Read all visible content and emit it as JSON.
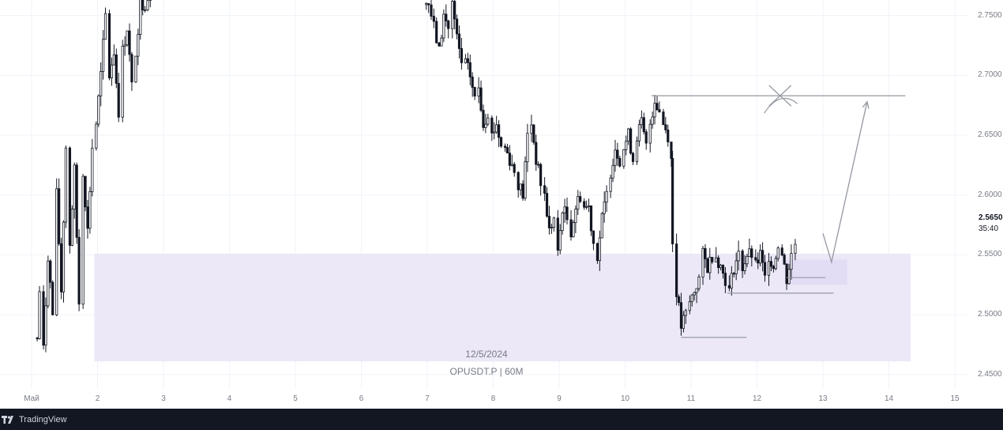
{
  "chart_data": {
    "type": "candlestick",
    "symbol": "OPUSDT.P",
    "interval": "60M",
    "watermark_date": "12/5/2024",
    "watermark_symbol": "OPUSDT.P | 60M",
    "y_axis_ticks": [
      "2.7500",
      "2.7000",
      "2.6500",
      "2.6000",
      "2.5500",
      "2.5000",
      "2.4500"
    ],
    "y_tick_values": [
      2.75,
      2.7,
      2.65,
      2.6,
      2.55,
      2.5,
      2.45
    ],
    "ylim": [
      2.438,
      2.763
    ],
    "x_axis_ticks": [
      "Май",
      "2",
      "3",
      "4",
      "5",
      "6",
      "7",
      "8",
      "9",
      "10",
      "11",
      "12",
      "13",
      "14",
      "15"
    ],
    "x_tick_days": [
      1,
      2,
      3,
      4,
      5,
      6,
      7,
      8,
      9,
      10,
      11,
      12,
      13,
      14,
      15
    ],
    "last_price": "2.5650",
    "countdown": "35:40",
    "price_path": [
      [
        1.05,
        2.44
      ],
      [
        1.12,
        2.52
      ],
      [
        1.18,
        2.47
      ],
      [
        1.25,
        2.55
      ],
      [
        1.32,
        2.5
      ],
      [
        1.38,
        2.6
      ],
      [
        1.45,
        2.52
      ],
      [
        1.52,
        2.64
      ],
      [
        1.58,
        2.56
      ],
      [
        1.65,
        2.62
      ],
      [
        1.72,
        2.51
      ],
      [
        1.78,
        2.62
      ],
      [
        1.85,
        2.57
      ],
      [
        1.92,
        2.64
      ],
      [
        1.98,
        2.66
      ],
      [
        2.05,
        2.7
      ],
      [
        2.12,
        2.75
      ],
      [
        2.18,
        2.7
      ],
      [
        2.25,
        2.72
      ],
      [
        2.32,
        2.67
      ],
      [
        2.38,
        2.72
      ],
      [
        2.45,
        2.74
      ],
      [
        2.52,
        2.69
      ],
      [
        2.58,
        2.72
      ],
      [
        2.65,
        2.76
      ],
      [
        2.72,
        2.76
      ],
      [
        2.8,
        2.77
      ],
      [
        6.95,
        2.77
      ],
      [
        7.02,
        2.76
      ],
      [
        7.1,
        2.74
      ],
      [
        7.18,
        2.72
      ],
      [
        7.25,
        2.75
      ],
      [
        7.32,
        2.74
      ],
      [
        7.38,
        2.76
      ],
      [
        7.45,
        2.73
      ],
      [
        7.52,
        2.71
      ],
      [
        7.58,
        2.71
      ],
      [
        7.65,
        2.7
      ],
      [
        7.72,
        2.68
      ],
      [
        7.78,
        2.69
      ],
      [
        7.85,
        2.66
      ],
      [
        7.92,
        2.67
      ],
      [
        7.98,
        2.65
      ],
      [
        8.05,
        2.66
      ],
      [
        8.12,
        2.64
      ],
      [
        8.18,
        2.64
      ],
      [
        8.25,
        2.63
      ],
      [
        8.32,
        2.62
      ],
      [
        8.38,
        2.61
      ],
      [
        8.45,
        2.6
      ],
      [
        8.52,
        2.65
      ],
      [
        8.58,
        2.66
      ],
      [
        8.65,
        2.63
      ],
      [
        8.72,
        2.61
      ],
      [
        8.78,
        2.6
      ],
      [
        8.85,
        2.57
      ],
      [
        8.92,
        2.58
      ],
      [
        8.98,
        2.55
      ],
      [
        9.05,
        2.59
      ],
      [
        9.12,
        2.58
      ],
      [
        9.18,
        2.57
      ],
      [
        9.25,
        2.59
      ],
      [
        9.32,
        2.6
      ],
      [
        9.38,
        2.59
      ],
      [
        9.45,
        2.59
      ],
      [
        9.52,
        2.56
      ],
      [
        9.58,
        2.55
      ],
      [
        9.65,
        2.58
      ],
      [
        9.72,
        2.6
      ],
      [
        9.78,
        2.62
      ],
      [
        9.85,
        2.64
      ],
      [
        9.92,
        2.63
      ],
      [
        9.98,
        2.64
      ],
      [
        10.05,
        2.65
      ],
      [
        10.12,
        2.63
      ],
      [
        10.18,
        2.65
      ],
      [
        10.25,
        2.66
      ],
      [
        10.32,
        2.64
      ],
      [
        10.38,
        2.66
      ],
      [
        10.45,
        2.68
      ],
      [
        10.52,
        2.67
      ],
      [
        10.58,
        2.66
      ],
      [
        10.65,
        2.65
      ],
      [
        10.7,
        2.63
      ],
      [
        10.72,
        2.56
      ],
      [
        10.78,
        2.52
      ],
      [
        10.85,
        2.49
      ],
      [
        10.92,
        2.5
      ],
      [
        10.98,
        2.51
      ],
      [
        11.05,
        2.52
      ],
      [
        11.12,
        2.53
      ],
      [
        11.18,
        2.55
      ],
      [
        11.25,
        2.54
      ],
      [
        11.32,
        2.55
      ],
      [
        11.38,
        2.55
      ],
      [
        11.45,
        2.54
      ],
      [
        11.52,
        2.53
      ],
      [
        11.58,
        2.52
      ],
      [
        11.65,
        2.54
      ],
      [
        11.72,
        2.55
      ],
      [
        11.78,
        2.54
      ],
      [
        11.85,
        2.55
      ],
      [
        11.92,
        2.55
      ],
      [
        11.98,
        2.54
      ],
      [
        12.05,
        2.55
      ],
      [
        12.12,
        2.53
      ],
      [
        12.18,
        2.55
      ],
      [
        12.25,
        2.54
      ],
      [
        12.32,
        2.56
      ],
      [
        12.38,
        2.55
      ],
      [
        12.45,
        2.53
      ],
      [
        12.52,
        2.55
      ],
      [
        12.58,
        2.56
      ]
    ],
    "zones": [
      {
        "x0": 1.95,
        "x1": 14.33,
        "y_top": 2.551,
        "y_bottom": 2.461,
        "color": "#ece8f7"
      },
      {
        "x0": 12.45,
        "x1": 13.37,
        "y_top": 2.546,
        "y_bottom": 2.525,
        "color": "#e3dcf5"
      }
    ],
    "lines": [
      {
        "x0": 10.4,
        "x1": 14.25,
        "y": 2.683
      },
      {
        "x0": 10.85,
        "x1": 11.84,
        "y": 2.481
      },
      {
        "x0": 11.55,
        "x1": 13.16,
        "y": 2.518
      },
      {
        "x0": 12.45,
        "x1": 13.04,
        "y": 2.531
      }
    ],
    "projection_path": [
      [
        13.0,
        2.568
      ],
      [
        13.13,
        2.544
      ],
      [
        13.67,
        2.678
      ]
    ],
    "cross_mark": {
      "x": 12.35,
      "y": 2.683
    }
  },
  "footer": {
    "brand": "TradingView"
  },
  "colors": {
    "candle": "#131722",
    "zone": "#ece8f7",
    "drawing": "#9598a1",
    "grid": "#f0f3fa",
    "footer_bg": "#131722"
  }
}
